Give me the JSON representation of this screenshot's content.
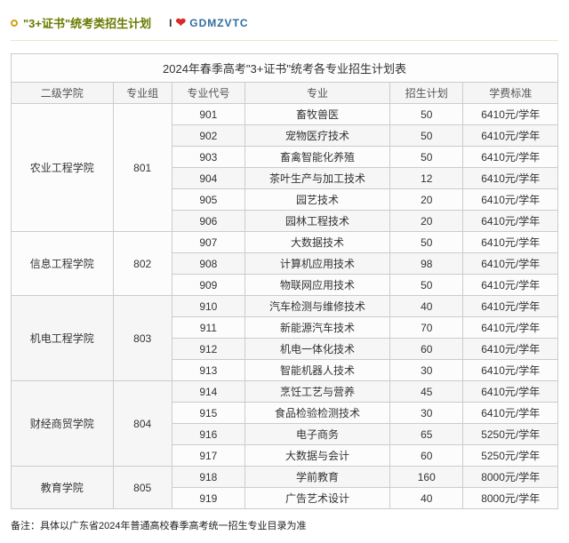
{
  "header": {
    "title": "\"3+证书\"统考类招生计划",
    "love_i": "I",
    "heart": "❤",
    "gdm": "GDMZVTC"
  },
  "table": {
    "caption": "2024年春季高考\"3+证书\"统考各专业招生计划表",
    "headers": [
      "二级学院",
      "专业组",
      "专业代号",
      "专业",
      "招生计划",
      "学费标准"
    ],
    "groups": [
      {
        "college": "农业工程学院",
        "group_code": "801",
        "rows": [
          {
            "code": "901",
            "major": "畜牧兽医",
            "plan": "50",
            "fee": "6410元/学年"
          },
          {
            "code": "902",
            "major": "宠物医疗技术",
            "plan": "50",
            "fee": "6410元/学年"
          },
          {
            "code": "903",
            "major": "畜禽智能化养殖",
            "plan": "50",
            "fee": "6410元/学年"
          },
          {
            "code": "904",
            "major": "茶叶生产与加工技术",
            "plan": "12",
            "fee": "6410元/学年"
          },
          {
            "code": "905",
            "major": "园艺技术",
            "plan": "20",
            "fee": "6410元/学年"
          },
          {
            "code": "906",
            "major": "园林工程技术",
            "plan": "20",
            "fee": "6410元/学年"
          }
        ]
      },
      {
        "college": "信息工程学院",
        "group_code": "802",
        "rows": [
          {
            "code": "907",
            "major": "大数据技术",
            "plan": "50",
            "fee": "6410元/学年"
          },
          {
            "code": "908",
            "major": "计算机应用技术",
            "plan": "98",
            "fee": "6410元/学年"
          },
          {
            "code": "909",
            "major": "物联网应用技术",
            "plan": "50",
            "fee": "6410元/学年"
          }
        ]
      },
      {
        "college": "机电工程学院",
        "group_code": "803",
        "rows": [
          {
            "code": "910",
            "major": "汽车检测与维修技术",
            "plan": "40",
            "fee": "6410元/学年"
          },
          {
            "code": "911",
            "major": "新能源汽车技术",
            "plan": "70",
            "fee": "6410元/学年"
          },
          {
            "code": "912",
            "major": "机电一体化技术",
            "plan": "60",
            "fee": "6410元/学年"
          },
          {
            "code": "913",
            "major": "智能机器人技术",
            "plan": "30",
            "fee": "6410元/学年"
          }
        ]
      },
      {
        "college": "财经商贸学院",
        "group_code": "804",
        "rows": [
          {
            "code": "914",
            "major": "烹饪工艺与营养",
            "plan": "45",
            "fee": "6410元/学年"
          },
          {
            "code": "915",
            "major": "食品检验检测技术",
            "plan": "30",
            "fee": "6410元/学年"
          },
          {
            "code": "916",
            "major": "电子商务",
            "plan": "65",
            "fee": "5250元/学年"
          },
          {
            "code": "917",
            "major": "大数据与会计",
            "plan": "60",
            "fee": "5250元/学年"
          }
        ]
      },
      {
        "college": "教育学院",
        "group_code": "805",
        "rows": [
          {
            "code": "918",
            "major": "学前教育",
            "plan": "160",
            "fee": "8000元/学年"
          },
          {
            "code": "919",
            "major": "广告艺术设计",
            "plan": "40",
            "fee": "8000元/学年"
          }
        ]
      }
    ]
  },
  "footnote": "备注：具体以广东省2024年普通高校春季高考统一招生专业目录为准"
}
